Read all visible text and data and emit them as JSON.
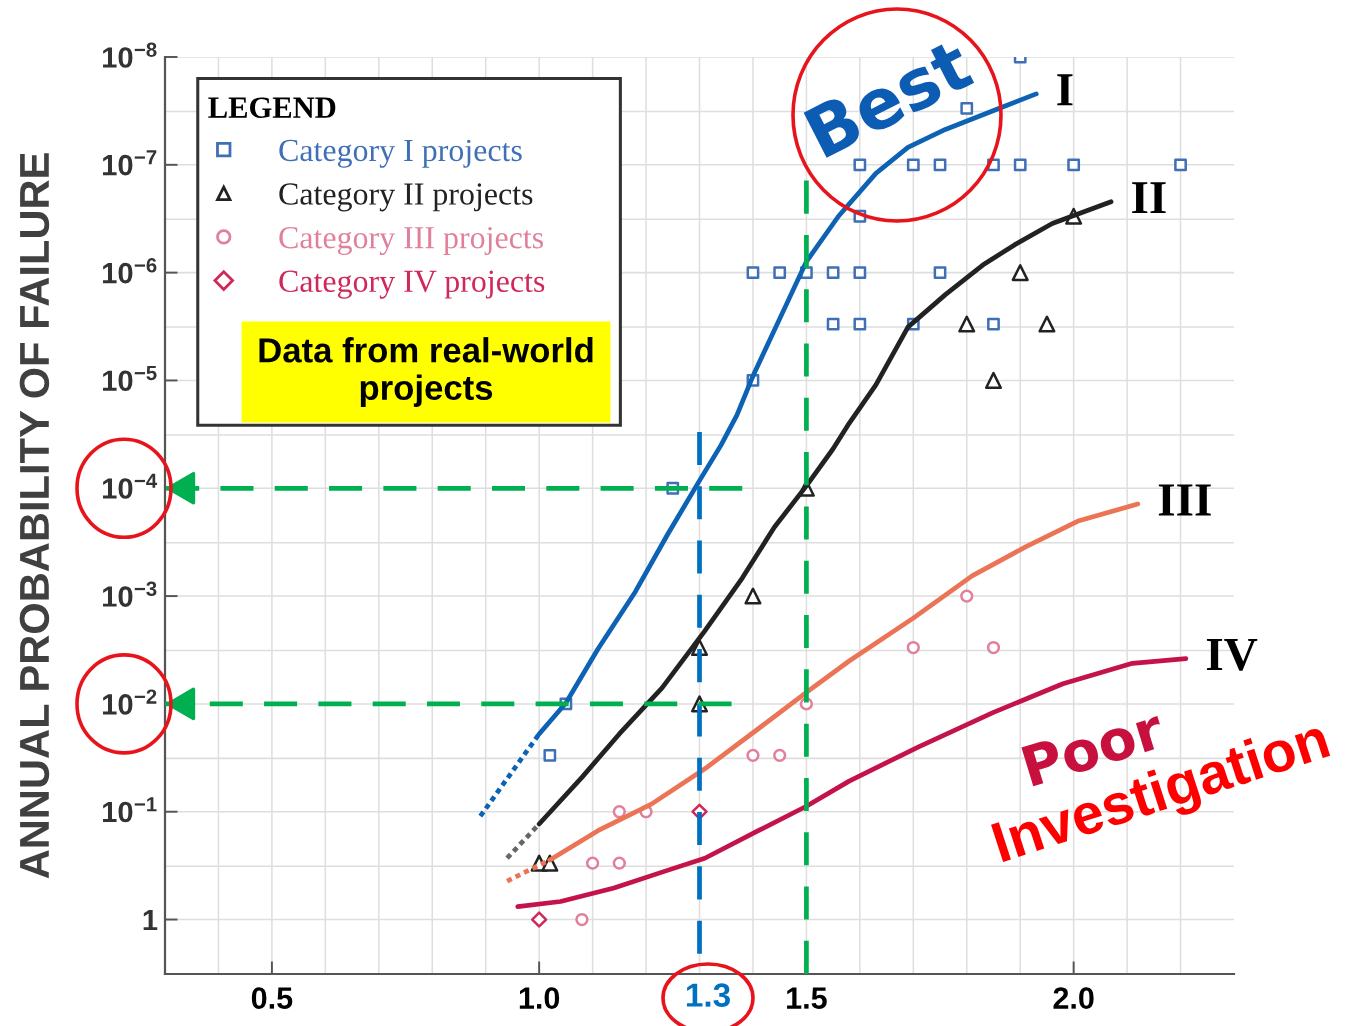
{
  "chart_data": {
    "type": "line",
    "ylabel": "ANNUAL PROBABILITY OF FAILURE",
    "legend_title": "LEGEND",
    "legend": "top left",
    "grid": true,
    "log": "y",
    "xlim": [
      0.3,
      2.3
    ],
    "ylim": [
      3.2,
      1e-08
    ],
    "xticks": [
      {
        "value": 0.4,
        "label": null
      },
      {
        "value": 0.5,
        "label": "0.5"
      },
      {
        "value": 0.6,
        "label": null
      },
      {
        "value": 0.7,
        "label": null
      },
      {
        "value": 0.8,
        "label": null
      },
      {
        "value": 0.9,
        "label": null
      },
      {
        "value": 1.0,
        "label": "1.0"
      },
      {
        "value": 1.1,
        "label": null
      },
      {
        "value": 1.2,
        "label": null
      },
      {
        "value": 1.3,
        "label": null
      },
      {
        "value": 1.4,
        "label": null
      },
      {
        "value": 1.5,
        "label": "1.5"
      },
      {
        "value": 1.6,
        "label": null
      },
      {
        "value": 1.7,
        "label": null
      },
      {
        "value": 1.8,
        "label": null
      },
      {
        "value": 1.9,
        "label": null
      },
      {
        "value": 2.0,
        "label": "2.0"
      },
      {
        "value": 2.1,
        "label": null
      },
      {
        "value": 2.2,
        "label": null
      }
    ],
    "yticks": [
      {
        "value": 1e-08,
        "label": "10$^{−8}$"
      },
      {
        "value": 3.2e-08,
        "label": null
      },
      {
        "value": 1e-07,
        "label": "10$^{−7}$"
      },
      {
        "value": 3.2e-07,
        "label": null
      },
      {
        "value": 1e-06,
        "label": "10$^{−6}$"
      },
      {
        "value": 3.2e-06,
        "label": null
      },
      {
        "value": 1e-05,
        "label": "10$^{−5}$"
      },
      {
        "value": 3.2e-05,
        "label": null
      },
      {
        "value": 0.0001,
        "label": "10$^{−4}$"
      },
      {
        "value": 0.00032,
        "label": null
      },
      {
        "value": 0.001,
        "label": "10$^{−3}$"
      },
      {
        "value": 0.0032,
        "label": null
      },
      {
        "value": 0.01,
        "label": "10$^{−2}$"
      },
      {
        "value": 0.032,
        "label": null
      },
      {
        "value": 0.1,
        "label": "10$^{−1}$"
      },
      {
        "value": 0.32,
        "label": null
      },
      1
    ],
    "annotations": [
      "Data from real-world\nprojects",
      "Best",
      "Poor",
      "Investigation",
      "1.3"
    ],
    "series": [
      {
        "type": "scatter",
        "name": "Category I projects",
        "color": "#3f6fb5",
        "marker": "square",
        "x": [
          1.9,
          1.8,
          1.6,
          1.7,
          1.75,
          1.85,
          1.9,
          2.0,
          2.2,
          1.6,
          1.4,
          1.45,
          1.5,
          1.55,
          1.6,
          1.75,
          1.55,
          1.6,
          1.7,
          1.85,
          1.4,
          1.25,
          1.05,
          1.02
        ],
        "values": [
          1e-08,
          3e-08,
          1e-07,
          1e-07,
          1e-07,
          1e-07,
          1e-07,
          1e-07,
          1e-07,
          3e-07,
          1e-06,
          1e-06,
          1e-06,
          1e-06,
          1e-06,
          1e-06,
          3e-06,
          3e-06,
          3e-06,
          3e-06,
          1e-05,
          0.0001,
          0.01,
          0.03
        ]
      },
      {
        "type": "scatter",
        "name": "Category II projects",
        "color": "#222222",
        "marker": "triangle",
        "x": [
          2.0,
          1.9,
          1.8,
          1.95,
          1.85,
          1.5,
          1.4,
          1.3,
          1.3,
          1.0,
          1.02
        ],
        "values": [
          3e-07,
          1e-06,
          3e-06,
          3e-06,
          1e-05,
          0.0001,
          0.001,
          0.003,
          0.01,
          0.3,
          0.3
        ]
      },
      {
        "type": "scatter",
        "name": "Category III projects",
        "color": "#e0809a",
        "marker": "circle",
        "x": [
          1.5,
          1.4,
          1.45,
          1.15,
          1.2,
          1.1,
          1.15,
          1.08,
          1.8,
          1.7,
          1.85
        ],
        "values": [
          0.01,
          0.03,
          0.03,
          0.1,
          0.1,
          0.3,
          0.3,
          1,
          0.001,
          0.003,
          0.003
        ]
      },
      {
        "type": "scatter",
        "name": "Category IV projects",
        "color": "#d02858",
        "marker": "diamond",
        "x": [
          1.3,
          1.0
        ],
        "values": [
          0.1,
          1
        ]
      },
      {
        "name": "I",
        "color": "#0e62b4",
        "x": [
          1.0,
          1.05,
          1.11,
          1.18,
          1.24,
          1.3,
          1.34,
          1.37,
          1.4,
          1.46,
          1.5,
          1.56,
          1.63,
          1.69,
          1.76,
          1.86,
          1.93
        ],
        "values": [
          0.019,
          0.0098,
          0.0031,
          0.00091,
          0.00027,
          8.5e-05,
          4e-05,
          2.1e-05,
          9.1e-06,
          2.1e-06,
          7.9e-07,
          3e-07,
          1.2e-07,
          6.9e-08,
          4.7e-08,
          3e-08,
          2.2e-08
        ]
      },
      {
        "color": "#0e62b4",
        "line_style": "dotted",
        "x": [
          0.89,
          1.0
        ],
        "values": [
          0.11,
          0.019
        ]
      },
      {
        "name": "II",
        "color": "#222222",
        "x": [
          1.0,
          1.08,
          1.15,
          1.23,
          1.31,
          1.38,
          1.44,
          1.5,
          1.55,
          1.58,
          1.63,
          1.69,
          1.76,
          1.83,
          1.89,
          1.96,
          2.07
        ],
        "values": [
          0.13,
          0.048,
          0.019,
          0.0071,
          0.0021,
          0.00068,
          0.00023,
          9.5e-05,
          4.3e-05,
          2.5e-05,
          1.1e-05,
          3.2e-06,
          1.6e-06,
          8.5e-07,
          5.5e-07,
          3.5e-07,
          2.2e-07
        ]
      },
      {
        "color": "#666666",
        "line_style": "dotted",
        "x": [
          0.94,
          1.0
        ],
        "values": [
          0.27,
          0.13
        ]
      },
      {
        "name": "III",
        "color": "#ec7456",
        "x": [
          1.02,
          1.11,
          1.21,
          1.31,
          1.41,
          1.5,
          1.58,
          1.7,
          1.81,
          1.91,
          2.01,
          2.12
        ],
        "values": [
          0.28,
          0.15,
          0.085,
          0.04,
          0.017,
          0.0078,
          0.004,
          0.0016,
          0.00065,
          0.00035,
          0.0002,
          0.00014
        ]
      },
      {
        "color": "#ec7456",
        "line_style": "dotted",
        "x": [
          0.94,
          1.02
        ],
        "values": [
          0.44,
          0.28
        ]
      },
      {
        "name": "IV",
        "color": "#c4124a",
        "x": [
          0.96,
          1.04,
          1.14,
          1.24,
          1.31,
          1.41,
          1.5,
          1.58,
          1.71,
          1.85,
          1.98,
          2.11,
          2.21
        ],
        "values": [
          0.76,
          0.68,
          0.51,
          0.35,
          0.27,
          0.15,
          0.089,
          0.052,
          0.025,
          0.012,
          0.0065,
          0.0042,
          0.0038
        ]
      },
      {
        "color": "#00b050",
        "line_style": "dashed",
        "x": [
          1.5,
          1.5
        ],
        "values": [
          1.4e-07,
          3.2
        ]
      },
      {
        "color": "#0070c0",
        "line_style": "dashed",
        "x": [
          1.3,
          1.3
        ],
        "values": [
          3e-05,
          3.2
        ]
      },
      {
        "color": "#00b050",
        "line_style": "dashed",
        "x": [
          1.38,
          0.3
        ],
        "values": [
          0.0001,
          0.0001
        ]
      },
      {
        "color": "#00b050",
        "line_style": "dashed",
        "x": [
          1.36,
          0.3
        ],
        "values": [
          0.01,
          0.01
        ]
      }
    ]
  }
}
